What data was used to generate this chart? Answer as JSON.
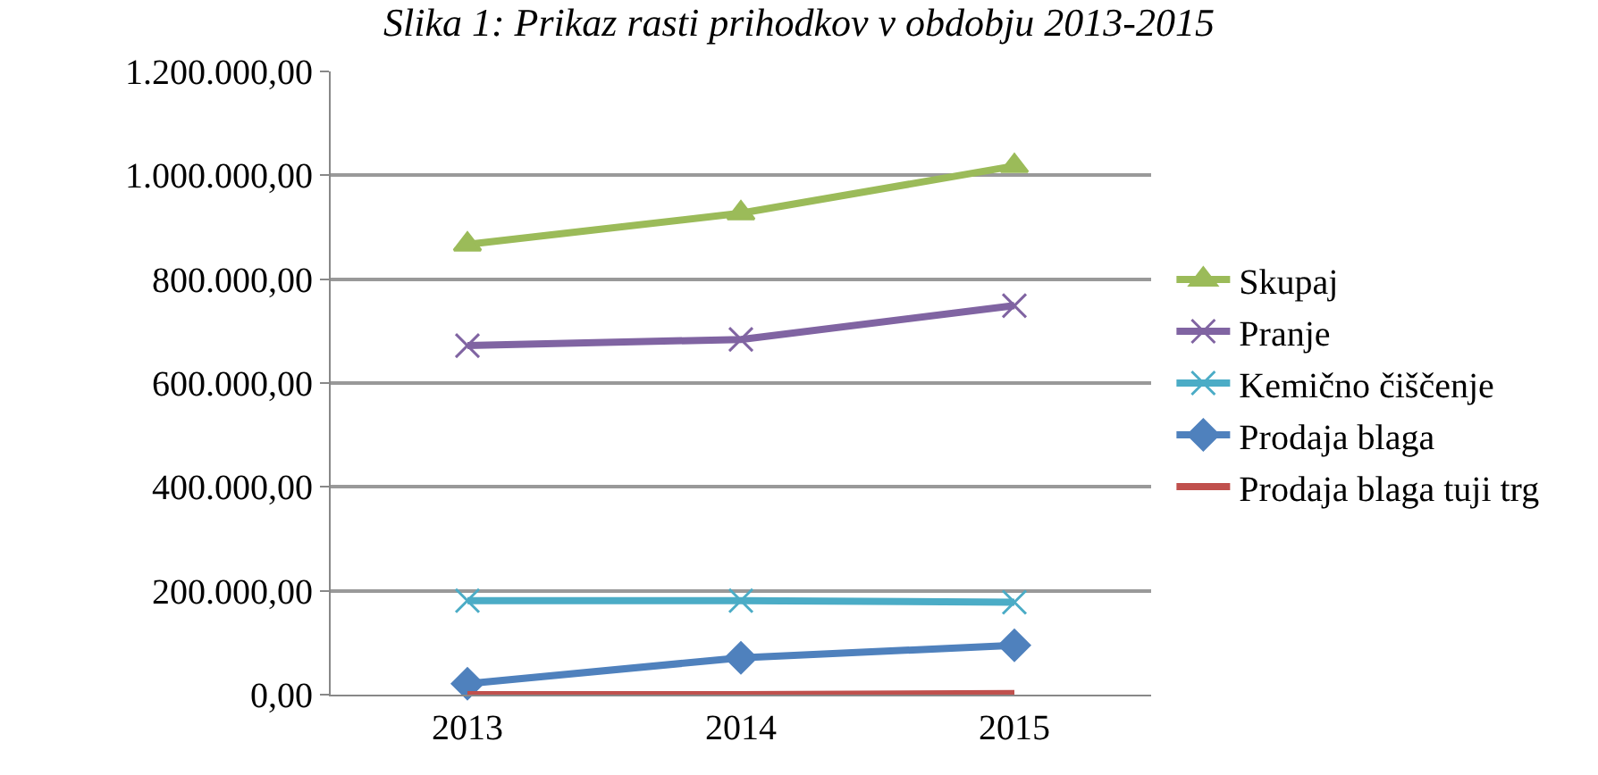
{
  "chart_data": {
    "type": "line",
    "title": "Slika 1: Prikaz rasti prihodkov v obdobju 2013-2015",
    "categories": [
      "2013",
      "2014",
      "2015"
    ],
    "series": [
      {
        "name": "Skupaj",
        "color": "#9bbb59",
        "marker": "triangle",
        "values": [
          867000,
          927000,
          1018000
        ]
      },
      {
        "name": "Pranje",
        "color": "#8064a2",
        "marker": "cross",
        "values": [
          672000,
          684000,
          749000
        ]
      },
      {
        "name": "Kemično čiščenje",
        "color": "#4bacc6",
        "marker": "cross",
        "values": [
          181000,
          181000,
          178000
        ]
      },
      {
        "name": "Prodaja blaga",
        "color": "#4f81bd",
        "marker": "diamond",
        "values": [
          21000,
          71000,
          95000
        ]
      },
      {
        "name": "Prodaja blaga tuji trg",
        "color": "#c0504d",
        "marker": "none",
        "values": [
          0,
          0,
          2000
        ]
      }
    ],
    "ylim": [
      0,
      1200000
    ],
    "yticks": [
      {
        "value": 0,
        "label": "0,00"
      },
      {
        "value": 200000,
        "label": "200.000,00"
      },
      {
        "value": 400000,
        "label": "400.000,00"
      },
      {
        "value": 600000,
        "label": "600.000,00"
      },
      {
        "value": 800000,
        "label": "800.000,00"
      },
      {
        "value": 1000000,
        "label": "1.000.000,00"
      },
      {
        "value": 1200000,
        "label": "1.200.000,00"
      }
    ],
    "grid": "y",
    "legend": "right",
    "line_style": "solid"
  }
}
